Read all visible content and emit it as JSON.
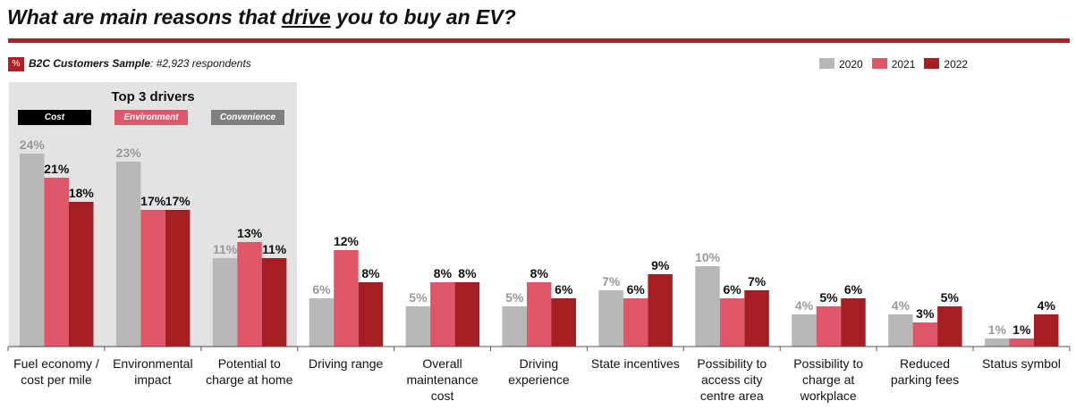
{
  "header": {
    "title_before": "What are main reasons that ",
    "title_underlined": "drive",
    "title_after": " you to buy an EV?"
  },
  "sample": {
    "badge": "%",
    "label": "B2C Customers Sample",
    "value": ": #2,923 respondents"
  },
  "highlight": {
    "title": "Top 3 drivers",
    "tags": [
      {
        "label": "Cost",
        "color": "#000000"
      },
      {
        "label": "Environment",
        "color": "#e0566b"
      },
      {
        "label": "Convenience",
        "color": "#7f7f7f"
      }
    ]
  },
  "chart_data": {
    "type": "bar",
    "categories": [
      "Fuel economy / cost per mile",
      "Environmental impact",
      "Potential to charge at home",
      "Driving range",
      "Overall maintenance cost",
      "Driving experience",
      "State incentives",
      "Possibility to access city centre area",
      "Possibility to charge at workplace",
      "Reduced parking fees",
      "Status symbol"
    ],
    "series": [
      {
        "name": "2020",
        "color": "#b8b8b8",
        "values": [
          24,
          23,
          11,
          6,
          5,
          5,
          7,
          10,
          4,
          4,
          1
        ]
      },
      {
        "name": "2021",
        "color": "#e0566b",
        "values": [
          21,
          17,
          13,
          12,
          8,
          8,
          6,
          6,
          5,
          3,
          1
        ]
      },
      {
        "name": "2022",
        "color": "#a61e22",
        "values": [
          18,
          17,
          11,
          8,
          8,
          6,
          9,
          7,
          6,
          5,
          4
        ]
      }
    ],
    "unit": "%",
    "ylim": [
      0,
      24
    ],
    "grid": false,
    "legend": "top-right"
  }
}
